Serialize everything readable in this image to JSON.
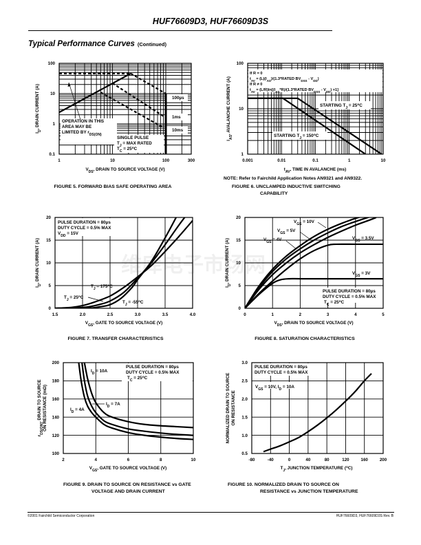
{
  "header": {
    "doc_title": "HUF76609D3, HUF76609D3S",
    "section_title": "Typical Performance Curves",
    "section_suffix": "(Continued)"
  },
  "footer": {
    "left": "©2001 Fairchild Semiconductor Corporation",
    "right": "HUF76609D3, HUF76609D3S Rev. B"
  },
  "watermark": "维库电子市场网",
  "chart_data": [
    {
      "id": "fig5",
      "type": "line",
      "caption": "FIGURE 5.  FORWARD BIAS SAFE OPERATING AREA",
      "xlabel": "VDS, DRAIN TO SOURCE VOLTAGE (V)",
      "ylabel": "ID, DRAIN CURRENT (A)",
      "xscale": "log",
      "yscale": "log",
      "xlim": [
        1,
        300
      ],
      "ylim": [
        0.1,
        100
      ],
      "xticks": [
        1,
        10,
        100,
        300
      ],
      "xtick_labels": [
        "1",
        "10",
        "100",
        "300"
      ],
      "yticks": [
        0.1,
        1,
        10,
        100
      ],
      "ytick_labels": [
        "0.1",
        "1",
        "10",
        "100"
      ],
      "grid": true,
      "series": [
        {
          "name": "rDS(ON) limit",
          "style": "solid",
          "x": [
            1,
            22
          ],
          "y": [
            2.4,
            46
          ]
        },
        {
          "name": "current limit",
          "style": "dashed",
          "x": [
            1,
            22
          ],
          "y": [
            46,
            46
          ]
        },
        {
          "name": "100µs",
          "style": "dashed",
          "x": [
            22,
            100
          ],
          "y": [
            46,
            10
          ]
        },
        {
          "name": "1ms",
          "style": "dashed",
          "x": [
            10,
            100
          ],
          "y": [
            22,
            1.6
          ]
        },
        {
          "name": "10ms",
          "style": "dashed",
          "x": [
            6,
            90
          ],
          "y": [
            11,
            0.75
          ]
        },
        {
          "name": "BVDSS",
          "style": "solid",
          "x": [
            100,
            100
          ],
          "y": [
            0.1,
            10
          ]
        }
      ],
      "annotations": [
        "OPERATION IN THIS",
        "AREA MAY BE",
        "LIMITED BY rDS(ON)",
        "SINGLE PULSE",
        "TJ = MAX RATED",
        "TC = 25°C",
        "100µs",
        "1ms",
        "10ms"
      ]
    },
    {
      "id": "fig6",
      "type": "line",
      "caption": "FIGURE 6.  UNCLAMPED INDUCTIVE SWITCHING CAPABILITY",
      "caption_line1": "FIGURE 6.  UNCLAMPED INDUCTIVE SWITCHING",
      "caption_line2": "CAPABILITY",
      "note": "NOTE:  Refer to Fairchild Application Notes AN9321 and AN9322.",
      "xlabel": "tAV, TIME IN AVALANCHE (ms)",
      "ylabel": "IAS, AVALANCHE CURRENT (A)",
      "xscale": "log",
      "yscale": "log",
      "xlim": [
        0.001,
        10
      ],
      "ylim": [
        1,
        100
      ],
      "xticks": [
        0.001,
        0.01,
        0.1,
        1,
        10
      ],
      "xtick_labels": [
        "0.001",
        "0.01",
        "0.1",
        "1",
        "10"
      ],
      "yticks": [
        1,
        10,
        100
      ],
      "ytick_labels": [
        "1",
        "10",
        "100"
      ],
      "grid": true,
      "series": [
        {
          "name": "STARTING TJ = 25°C",
          "x": [
            0.001,
            0.03,
            9
          ],
          "y": [
            17,
            17,
            1
          ]
        },
        {
          "name": "STARTING TJ = 150°C",
          "x": [
            0.001,
            0.011,
            3
          ],
          "y": [
            17,
            17,
            1
          ]
        }
      ],
      "annotations": [
        "If R = 0",
        "tAV = (L)(IAS)/(1.3*RATED BVDSS - VDD)",
        "If R ≠ 0",
        "tAV = (L/R)ln[(IAS*R)/(1.3*RATED BVDSS - VDD) +1]",
        "STARTING TJ = 25°C",
        "STARTING TJ = 150°C"
      ]
    },
    {
      "id": "fig7",
      "type": "line",
      "caption": "FIGURE 7.  TRANSFER CHARACTERISTICS",
      "xlabel": "VGS, GATE TO SOURCE VOLTAGE (V)",
      "ylabel": "ID, DRAIN CURRENT (A)",
      "xlim": [
        1.5,
        4.0
      ],
      "ylim": [
        0,
        20
      ],
      "xticks": [
        1.5,
        2.0,
        2.5,
        3.0,
        3.5,
        4.0
      ],
      "xtick_labels": [
        "1.5",
        "2.0",
        "2.5",
        "3.0",
        "3.5",
        "4.0"
      ],
      "yticks": [
        0,
        5,
        10,
        15,
        20
      ],
      "ytick_labels": [
        "0",
        "5",
        "10",
        "15",
        "20"
      ],
      "grid": true,
      "series": [
        {
          "name": "TJ = 175°C",
          "x": [
            1.5,
            1.8,
            2.0,
            2.2,
            2.5,
            2.75,
            3.0,
            3.25,
            3.5,
            3.75,
            4.0
          ],
          "y": [
            0,
            0.2,
            0.6,
            1.3,
            2.7,
            4.6,
            6.9,
            9.4,
            12.5,
            15.8,
            19.3
          ]
        },
        {
          "name": "TJ = 25°C",
          "x": [
            1.5,
            1.9,
            2.1,
            2.3,
            2.5,
            2.75,
            3.0,
            3.25,
            3.5,
            3.75,
            3.95
          ],
          "y": [
            0,
            0.1,
            0.3,
            0.8,
            1.6,
            3.5,
            6.6,
            10.0,
            14.0,
            18.3,
            21.5
          ]
        },
        {
          "name": "TJ = -55°C",
          "x": [
            1.5,
            2.1,
            2.3,
            2.5,
            2.7,
            2.9,
            3.0,
            3.25,
            3.5,
            3.7
          ],
          "y": [
            0,
            0.05,
            0.3,
            0.8,
            2.2,
            4.6,
            6.3,
            10.3,
            15.5,
            20.0
          ]
        }
      ],
      "annotations": [
        "PULSE DURATION = 80µs",
        "DUTY CYCLE = 0.5% MAX",
        "VDD = 15V",
        "TJ = 175°C",
        "TJ = 25°C",
        "TJ = -55°C"
      ]
    },
    {
      "id": "fig8",
      "type": "line",
      "caption": "FIGURE 8.  SATURATION CHARACTERISTICS",
      "xlabel": "VDS, DRAIN TO SOURCE VOLTAGE (V)",
      "ylabel": "ID, DRAIN CURRENT (A)",
      "xlim": [
        0,
        5
      ],
      "ylim": [
        0,
        20
      ],
      "xticks": [
        0,
        1,
        2,
        3,
        4,
        5
      ],
      "xtick_labels": [
        "0",
        "1",
        "2",
        "3",
        "4",
        "5"
      ],
      "yticks": [
        0,
        5,
        10,
        15,
        20
      ],
      "ytick_labels": [
        "0",
        "5",
        "10",
        "15",
        "20"
      ],
      "grid": true,
      "series": [
        {
          "name": "VGS = 10V",
          "x": [
            0,
            0.5,
            1,
            1.5,
            2,
            2.5,
            3,
            3.5,
            4,
            4.3
          ],
          "y": [
            0,
            4.8,
            8.6,
            11.5,
            13.8,
            15.8,
            17.4,
            18.7,
            19.8,
            20.3
          ]
        },
        {
          "name": "VGS = 5V",
          "x": [
            0,
            0.5,
            1,
            1.5,
            2,
            2.5,
            3,
            3.5,
            4,
            4.5
          ],
          "y": [
            0,
            4.5,
            8.1,
            10.9,
            13.1,
            15.0,
            16.6,
            18.0,
            19.1,
            20.1
          ]
        },
        {
          "name": "VGS = 4V",
          "x": [
            0,
            0.5,
            1,
            1.5,
            2,
            2.5,
            3,
            3.5,
            4,
            4.5,
            4.75
          ],
          "y": [
            0,
            4.1,
            7.4,
            10.0,
            12.2,
            14.0,
            15.6,
            17.0,
            18.3,
            19.4,
            20.0
          ]
        },
        {
          "name": "VGS = 3.5V",
          "x": [
            0,
            0.5,
            1,
            1.5,
            2,
            2.5,
            3,
            3.3,
            4,
            5
          ],
          "y": [
            0,
            3.2,
            6.0,
            8.6,
            10.9,
            12.7,
            13.9,
            14.1,
            14.1,
            14.1
          ]
        },
        {
          "name": "VGS = 3V",
          "x": [
            0,
            0.5,
            1,
            1.3,
            1.6,
            2,
            3,
            4,
            5
          ],
          "y": [
            0,
            3.0,
            5.5,
            6.3,
            6.5,
            6.5,
            6.5,
            6.5,
            6.5
          ]
        }
      ],
      "annotations": [
        "VGS = 10V",
        "VGS = 5V",
        "VGS = 4V",
        "VGS = 3.5V",
        "VGS = 3V",
        "PULSE DURATION = 80µs",
        "DUTY CYCLE = 0.5% MAX",
        "TC = 25°C"
      ]
    },
    {
      "id": "fig9",
      "type": "line",
      "caption": "FIGURE 9.  DRAIN TO SOURCE ON RESISTANCE vs GATE VOLTAGE AND DRAIN CURRENT",
      "caption_line1": "FIGURE 9.  DRAIN TO SOURCE ON RESISTANCE vs GATE",
      "caption_line2": "VOLTAGE AND DRAIN CURRENT",
      "xlabel": "VGS, GATE TO SOURCE VOLTAGE (V)",
      "ylabel": "rDS(ON), DRAIN TO SOURCE ON RESISTANCE (mΩ)",
      "xlim": [
        2,
        10
      ],
      "ylim": [
        100,
        200
      ],
      "xticks": [
        2,
        4,
        6,
        8,
        10
      ],
      "xtick_labels": [
        "2",
        "4",
        "6",
        "8",
        "10"
      ],
      "yticks": [
        100,
        120,
        140,
        160,
        180,
        200
      ],
      "ytick_labels": [
        "100",
        "120",
        "140",
        "160",
        "180",
        "200"
      ],
      "grid": true,
      "series": [
        {
          "name": "ID = 10A",
          "x": [
            3.3,
            3.5,
            3.75,
            4,
            4.5,
            5,
            6,
            7,
            8,
            9,
            10
          ],
          "y": [
            200,
            182,
            166,
            156,
            145,
            140,
            135,
            132,
            130.5,
            129.5,
            128.5
          ]
        },
        {
          "name": "ID = 7A",
          "x": [
            3.15,
            3.3,
            3.5,
            3.75,
            4,
            4.5,
            5,
            6,
            7,
            8,
            9,
            10
          ],
          "y": [
            200,
            180,
            163,
            152,
            145,
            136,
            132,
            127,
            124.5,
            122.5,
            121,
            120
          ]
        },
        {
          "name": "ID = 4A",
          "x": [
            2.95,
            3.1,
            3.3,
            3.5,
            3.75,
            4,
            4.5,
            5,
            6,
            7,
            8,
            9,
            10
          ],
          "y": [
            200,
            180,
            162,
            152,
            145,
            140,
            132,
            128,
            123,
            120,
            118,
            116.5,
            115.5
          ]
        }
      ],
      "annotations": [
        "ID = 10A",
        "ID = 7A",
        "ID = 4A",
        "PULSE DURATION = 80µs",
        "DUTY CYCLE = 0.5% MAX",
        "TC = 25°C"
      ]
    },
    {
      "id": "fig10",
      "type": "line",
      "caption": "FIGURE 10.  NORMALIZED DRAIN TO SOURCE ON RESISTANCE vs JUNCTION TEMPERATURE",
      "caption_line1": "FIGURE 10.  NORMALIZED DRAIN TO SOURCE ON",
      "caption_line2": "RESISTANCE vs JUNCTION TEMPERATURE",
      "xlabel": "TJ, JUNCTION TEMPERATURE (°C)",
      "ylabel": "NORMALIZED DRAIN TO SOURCE ON RESISTANCE",
      "xlim": [
        -80,
        200
      ],
      "ylim": [
        0.5,
        3.0
      ],
      "xticks": [
        -80,
        -40,
        0,
        40,
        80,
        120,
        160,
        200
      ],
      "xtick_labels": [
        "-80",
        "-40",
        "0",
        "40",
        "80",
        "120",
        "160",
        "200"
      ],
      "yticks": [
        0.5,
        1.0,
        1.5,
        2.0,
        2.5,
        3.0
      ],
      "ytick_labels": [
        "0.5",
        "1.0",
        "1.5",
        "2.0",
        "2.5",
        "3.0"
      ],
      "grid": true,
      "series": [
        {
          "name": "VGS = 10V, ID = 10A",
          "x": [
            -55,
            -40,
            -20,
            0,
            20,
            40,
            60,
            80,
            100,
            120,
            140,
            160,
            175
          ],
          "y": [
            0.55,
            0.62,
            0.71,
            0.82,
            0.94,
            1.1,
            1.28,
            1.48,
            1.7,
            1.94,
            2.2,
            2.5,
            2.7
          ]
        }
      ],
      "annotations": [
        "PULSE DURATION = 80µs",
        "DUTY CYCLE = 0.5% MAX",
        "VGS = 10V, ID = 10A"
      ]
    }
  ]
}
